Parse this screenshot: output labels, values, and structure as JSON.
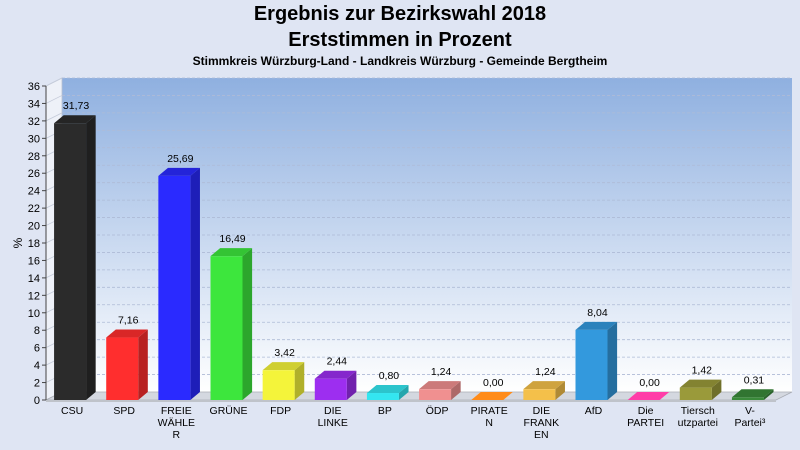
{
  "chart_data": {
    "type": "bar",
    "title": "Ergebnis zur Bezirkswahl 2018",
    "subtitle": "Erststimmen in Prozent",
    "subtitle2": "Stimmkreis Würzburg-Land - Landkreis Würzburg - Gemeinde Bergtheim",
    "ylabel": "%",
    "xlabel": "",
    "ylim": [
      0,
      36
    ],
    "yticks": [
      0,
      2,
      4,
      6,
      8,
      10,
      12,
      14,
      16,
      18,
      20,
      22,
      24,
      26,
      28,
      30,
      32,
      34,
      36
    ],
    "grid": true,
    "legend": "none",
    "categories": [
      [
        "CSU"
      ],
      [
        "SPD"
      ],
      [
        "FREIE",
        "WÄHLE",
        "R"
      ],
      [
        "GRÜNE"
      ],
      [
        "FDP"
      ],
      [
        "DIE",
        "LINKE"
      ],
      [
        "BP"
      ],
      [
        "ÖDP"
      ],
      [
        "PIRATE",
        "N"
      ],
      [
        "DIE",
        "FRANK",
        "EN"
      ],
      [
        "AfD"
      ],
      [
        "Die",
        "PARTEI"
      ],
      [
        "Tiersch",
        "utzpartei"
      ],
      [
        "V-",
        "Partei³"
      ]
    ],
    "values": [
      31.73,
      7.16,
      25.69,
      16.49,
      3.42,
      2.44,
      0.8,
      1.24,
      0.0,
      1.24,
      8.04,
      0.0,
      1.42,
      0.31
    ],
    "value_labels": [
      "31,73",
      "7,16",
      "25,69",
      "16,49",
      "3,42",
      "2,44",
      "0,80",
      "1,24",
      "0,00",
      "1,24",
      "8,04",
      "0,00",
      "1,42",
      "0,31"
    ],
    "colors": [
      "#2b2b2b",
      "#ff2e2e",
      "#2a2aff",
      "#3de63d",
      "#f4f43a",
      "#9d2ef0",
      "#34e6f0",
      "#f09090",
      "#ff8c1a",
      "#f4c04a",
      "#3399dd",
      "#ff3da8",
      "#9a9a3a",
      "#3a8a3a"
    ]
  }
}
